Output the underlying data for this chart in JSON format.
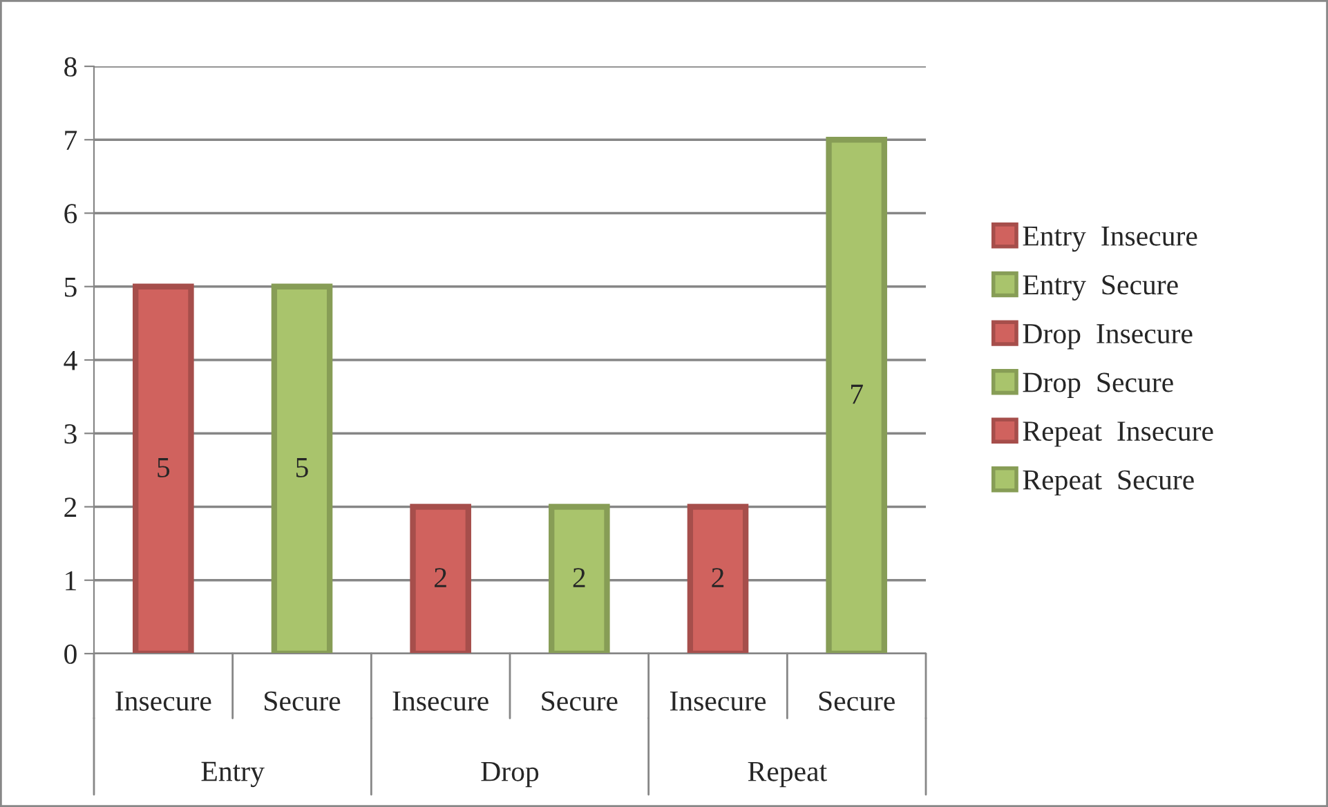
{
  "chart_data": {
    "type": "bar",
    "categories": [
      "Insecure",
      "Secure",
      "Insecure",
      "Secure",
      "Insecure",
      "Secure"
    ],
    "annotations": [
      "Entry",
      "Drop",
      "Repeat"
    ],
    "series": [
      {
        "name": "Entry  Insecure",
        "color": "#d0625e",
        "values": [
          5,
          null,
          null,
          null,
          null,
          null
        ]
      },
      {
        "name": "Entry  Secure",
        "color": "#a9c46c",
        "values": [
          null,
          5,
          null,
          null,
          null,
          null
        ]
      },
      {
        "name": "Drop  Insecure",
        "color": "#d0625e",
        "values": [
          null,
          null,
          2,
          null,
          null,
          null
        ]
      },
      {
        "name": "Drop  Secure",
        "color": "#a9c46c",
        "values": [
          null,
          null,
          null,
          2,
          null,
          null
        ]
      },
      {
        "name": "Repeat  Insecure",
        "color": "#d0625e",
        "values": [
          null,
          null,
          null,
          null,
          2,
          null
        ]
      },
      {
        "name": "Repeat  Secure",
        "color": "#a9c46c",
        "values": [
          null,
          null,
          null,
          null,
          null,
          7
        ]
      }
    ],
    "ylim": [
      0,
      8
    ],
    "yticks": [
      0,
      1,
      2,
      3,
      4,
      5,
      6,
      7,
      8
    ],
    "grid": "y",
    "legend": "right",
    "data_labels": true
  }
}
